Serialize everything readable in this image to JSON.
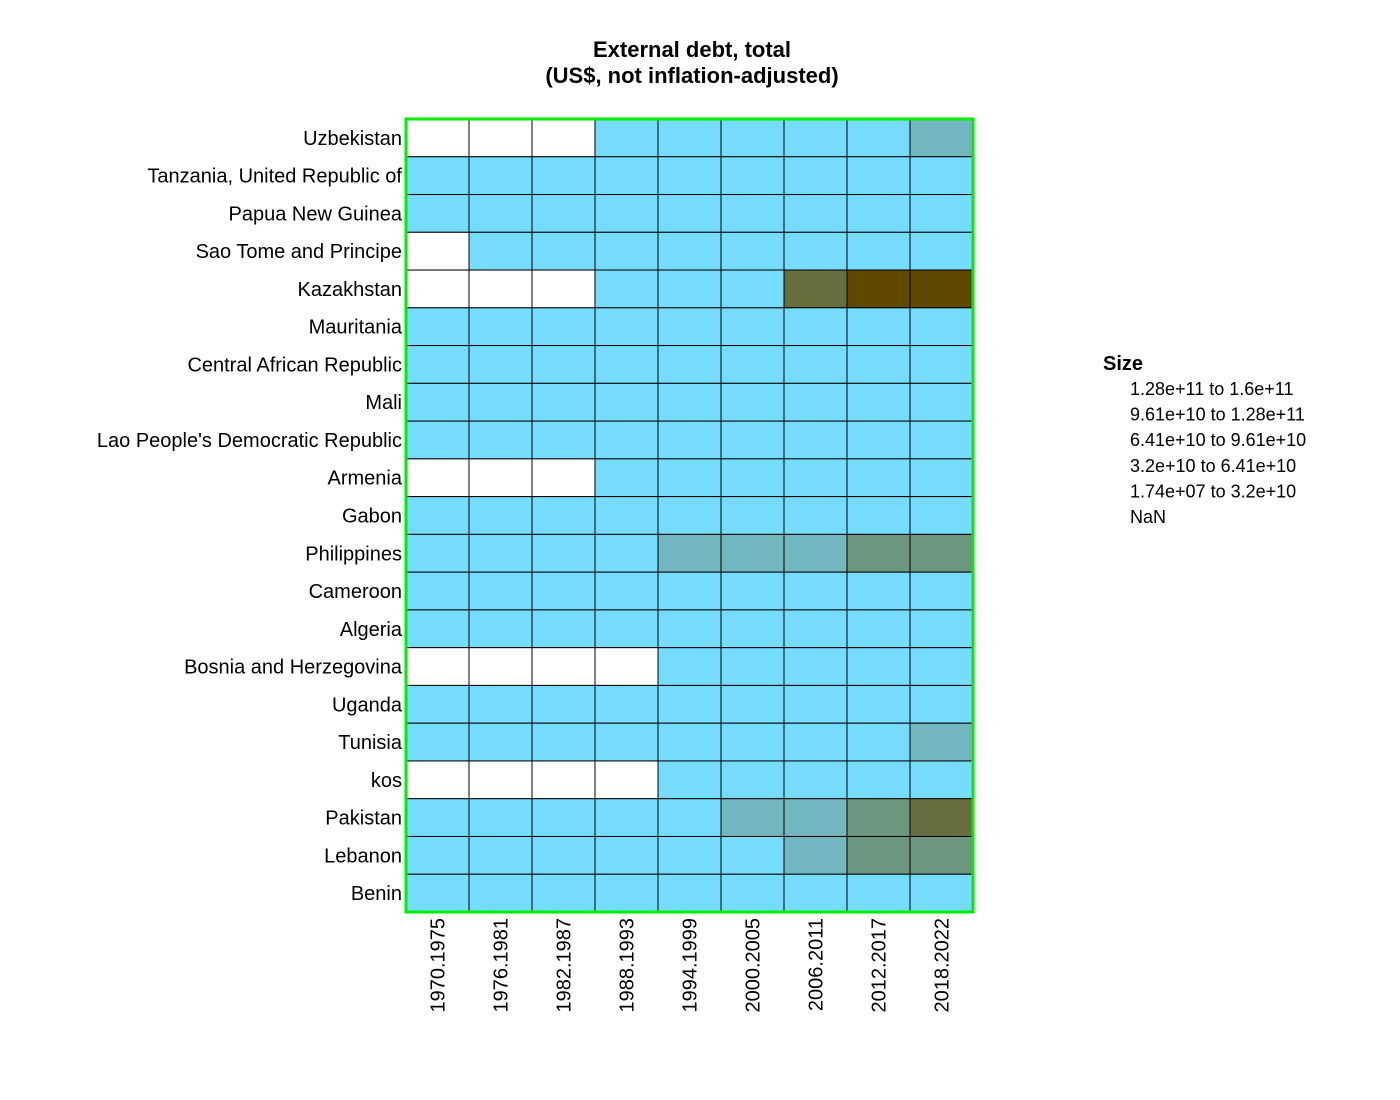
{
  "chart_data": {
    "type": "heatmap",
    "title": [
      "External debt, total",
      "(US$, not inflation-adjusted)"
    ],
    "rows": [
      "Uzbekistan",
      "Tanzania, United Republic of",
      "Papua New Guinea",
      "Sao Tome and Principe",
      "Kazakhstan",
      "Mauritania",
      "Central African Republic",
      "Mali",
      "Lao People's Democratic Republic",
      "Armenia",
      "Gabon",
      "Philippines",
      "Cameroon",
      "Algeria",
      "Bosnia and Herzegovina",
      "Uganda",
      "Tunisia",
      "kos",
      "Pakistan",
      "Lebanon",
      "Benin"
    ],
    "columns": [
      "1970.1975",
      "1976.1981",
      "1982.1987",
      "1988.1993",
      "1994.1999",
      "2000.2005",
      "2006.2011",
      "2012.2017",
      "2018.2022"
    ],
    "cells": [
      [
        5,
        5,
        5,
        0,
        0,
        0,
        0,
        0,
        1
      ],
      [
        0,
        0,
        0,
        0,
        0,
        0,
        0,
        0,
        0
      ],
      [
        0,
        0,
        0,
        0,
        0,
        0,
        0,
        0,
        0
      ],
      [
        5,
        0,
        0,
        0,
        0,
        0,
        0,
        0,
        0
      ],
      [
        5,
        5,
        5,
        0,
        0,
        0,
        3,
        4,
        4
      ],
      [
        0,
        0,
        0,
        0,
        0,
        0,
        0,
        0,
        0
      ],
      [
        0,
        0,
        0,
        0,
        0,
        0,
        0,
        0,
        0
      ],
      [
        0,
        0,
        0,
        0,
        0,
        0,
        0,
        0,
        0
      ],
      [
        0,
        0,
        0,
        0,
        0,
        0,
        0,
        0,
        0
      ],
      [
        5,
        5,
        5,
        0,
        0,
        0,
        0,
        0,
        0
      ],
      [
        0,
        0,
        0,
        0,
        0,
        0,
        0,
        0,
        0
      ],
      [
        0,
        0,
        0,
        0,
        1,
        1,
        1,
        2,
        2
      ],
      [
        0,
        0,
        0,
        0,
        0,
        0,
        0,
        0,
        0
      ],
      [
        0,
        0,
        0,
        0,
        0,
        0,
        0,
        0,
        0
      ],
      [
        5,
        5,
        5,
        5,
        0,
        0,
        0,
        0,
        0
      ],
      [
        0,
        0,
        0,
        0,
        0,
        0,
        0,
        0,
        0
      ],
      [
        0,
        0,
        0,
        0,
        0,
        0,
        0,
        0,
        1
      ],
      [
        5,
        5,
        5,
        5,
        0,
        0,
        0,
        0,
        0
      ],
      [
        0,
        0,
        0,
        0,
        0,
        1,
        1,
        2,
        3
      ],
      [
        0,
        0,
        0,
        0,
        0,
        0,
        1,
        2,
        2
      ],
      [
        0,
        0,
        0,
        0,
        0,
        0,
        0,
        0,
        0
      ]
    ],
    "bins": [
      {
        "label": "1.74e+07  to  3.2e+10",
        "color": "#76dcfe"
      },
      {
        "label": "3.2e+10  to  6.41e+10",
        "color": "#72b6c0"
      },
      {
        "label": "6.41e+10  to  9.61e+10",
        "color": "#6c967e"
      },
      {
        "label": "9.61e+10  to  1.28e+11",
        "color": "#676e3e"
      },
      {
        "label": "1.28e+11  to  1.6e+11",
        "color": "#614800"
      },
      {
        "label": "NaN",
        "color": "#ffffff"
      }
    ],
    "legend": {
      "title": "Size",
      "order": [
        4,
        3,
        2,
        1,
        0,
        5
      ],
      "position": "right"
    },
    "frame_color": "#00ee00",
    "grid_color": "#000000"
  }
}
